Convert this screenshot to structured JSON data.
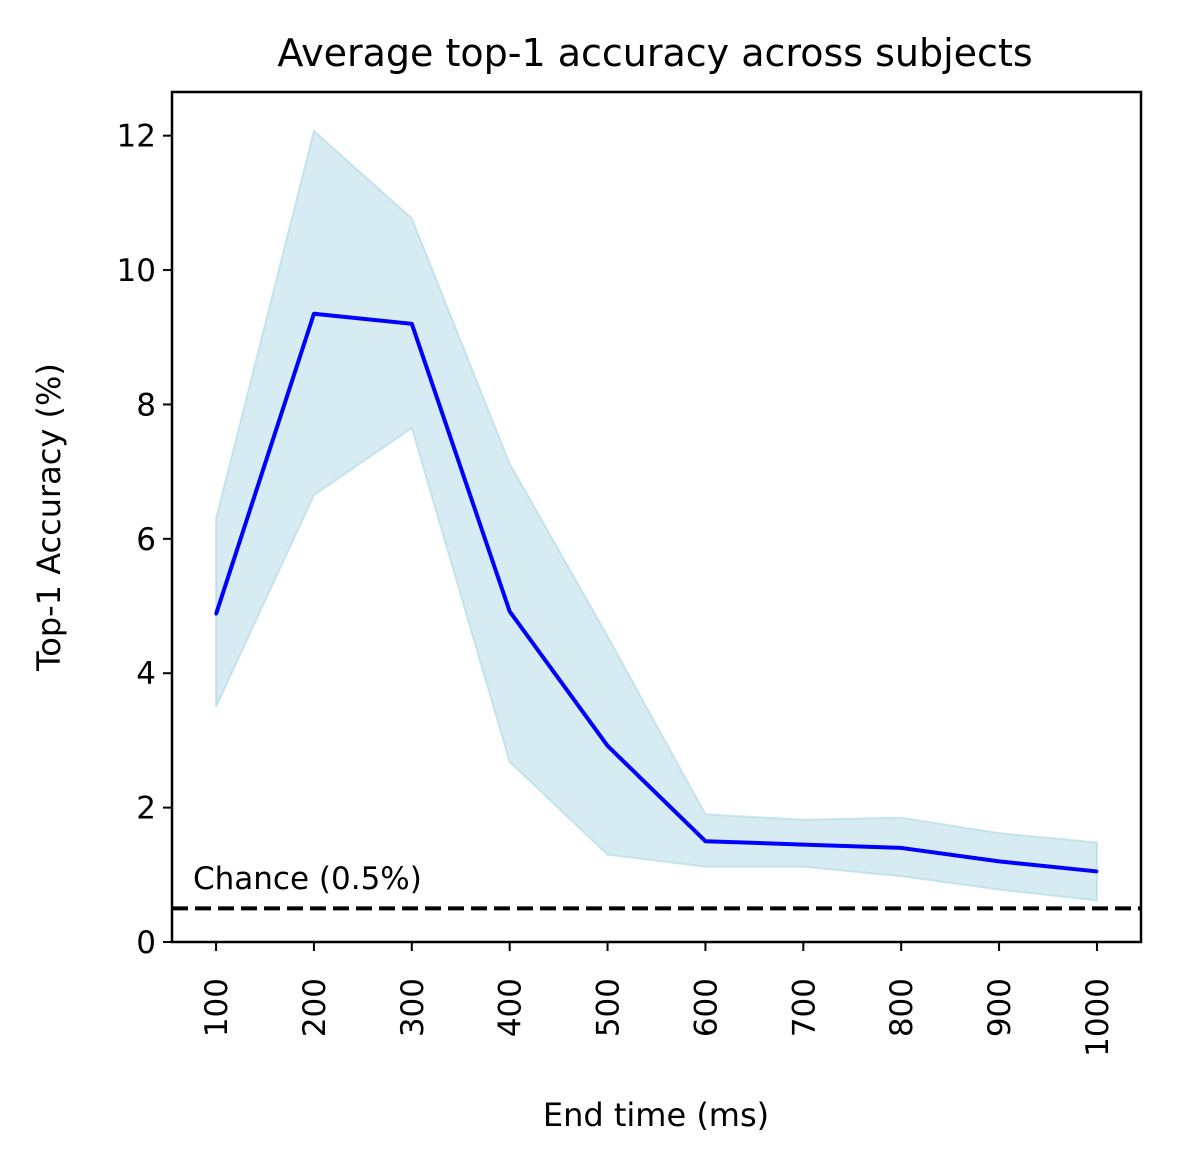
{
  "chart_data": {
    "type": "line",
    "title": "Average top-1 accuracy across subjects",
    "xlabel": "End time (ms)",
    "ylabel": "Top-1 Accuracy (%)",
    "x": [
      100,
      200,
      300,
      400,
      500,
      600,
      700,
      800,
      900,
      1000
    ],
    "x_tick_labels": [
      "100",
      "200",
      "300",
      "400",
      "500",
      "600",
      "700",
      "800",
      "900",
      "1000"
    ],
    "y_ticks": [
      0,
      2,
      4,
      6,
      8,
      10,
      12
    ],
    "y_tick_labels": [
      "0",
      "2",
      "4",
      "6",
      "8",
      "10",
      "12"
    ],
    "xlim": [
      55,
      1045
    ],
    "ylim": [
      0,
      12.65
    ],
    "grid": false,
    "series": [
      {
        "values": [
          4.88,
          9.35,
          9.2,
          4.92,
          2.92,
          1.5,
          1.45,
          1.4,
          1.2,
          1.05
        ],
        "color": "#0000ff",
        "band_lower": [
          3.5,
          6.65,
          7.65,
          2.68,
          1.3,
          1.12,
          1.12,
          0.98,
          0.78,
          0.62
        ],
        "band_upper": [
          6.3,
          12.07,
          10.77,
          7.12,
          4.55,
          1.9,
          1.82,
          1.85,
          1.62,
          1.48
        ],
        "band_color": "#add8e6"
      }
    ],
    "reference_line": {
      "y": 0.5,
      "label": "Chance (0.5%)",
      "style": "dashed",
      "color": "#000000"
    }
  }
}
